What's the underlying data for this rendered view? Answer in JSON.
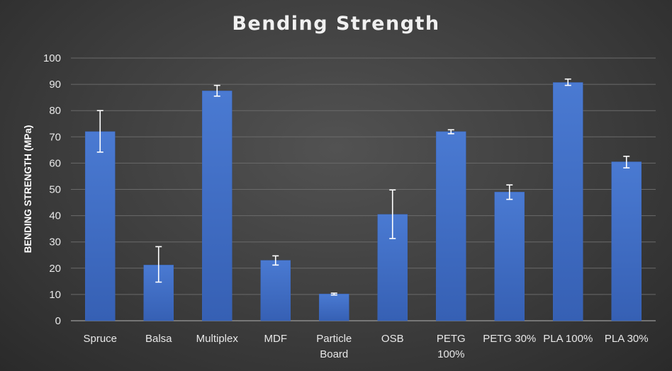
{
  "chart_data": {
    "type": "bar",
    "title": "Bending Strength",
    "xlabel": "",
    "ylabel": "BENDING STRENGTH (MPa)",
    "ylim": [
      0,
      100
    ],
    "yticks": [
      0,
      10,
      20,
      30,
      40,
      50,
      60,
      70,
      80,
      90,
      100
    ],
    "grid": true,
    "legend": "none",
    "bar_color": "#4472c4",
    "categories": [
      "Spruce",
      "Balsa",
      "Multiplex",
      "MDF",
      "Particle Board",
      "OSB",
      "PETG 100%",
      "PETG 30%",
      "PLA 100%",
      "PLA 30%"
    ],
    "category_lines": [
      [
        "Spruce"
      ],
      [
        "Balsa"
      ],
      [
        "Multiplex"
      ],
      [
        "MDF"
      ],
      [
        "Particle",
        "Board"
      ],
      [
        "OSB"
      ],
      [
        "PETG",
        "100%"
      ],
      [
        "PETG 30%"
      ],
      [
        "PLA 100%"
      ],
      [
        "PLA 30%"
      ]
    ],
    "values": [
      72,
      21.2,
      87.5,
      23,
      10.2,
      40.5,
      72,
      49,
      90.7,
      60.5
    ],
    "error_low": [
      64.2,
      14.7,
      85.5,
      21.2,
      9.8,
      31.3,
      71.2,
      46.2,
      89.6,
      58.2
    ],
    "error_high": [
      80,
      28.2,
      89.6,
      24.7,
      10.5,
      49.8,
      72.7,
      51.7,
      92,
      62.6
    ]
  }
}
